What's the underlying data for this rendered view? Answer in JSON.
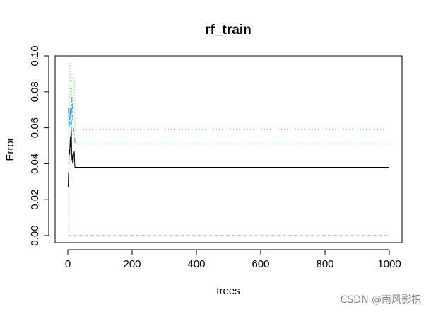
{
  "chart_data": {
    "type": "line",
    "title": "rf_train",
    "xlabel": "trees",
    "ylabel": "Error",
    "xlim": [
      0,
      1000
    ],
    "ylim": [
      0,
      0.1
    ],
    "x_ticks": [
      0,
      200,
      400,
      600,
      800,
      1000
    ],
    "x_tick_labels": [
      "0",
      "200",
      "400",
      "600",
      "800",
      "1000"
    ],
    "y_ticks": [
      0.0,
      0.02,
      0.04,
      0.06,
      0.08,
      0.1
    ],
    "y_tick_labels": [
      "0.00",
      "0.02",
      "0.04",
      "0.06",
      "0.08",
      "0.10"
    ],
    "grid": false,
    "legend": false,
    "series": [
      {
        "color": "#000000",
        "dash": "solid",
        "x": [
          1,
          2,
          3,
          4,
          5,
          6,
          7,
          8,
          9,
          10,
          11,
          12,
          13,
          14,
          15,
          16,
          17,
          18,
          19,
          20,
          21,
          22,
          23,
          1000
        ],
        "y": [
          0.027,
          0.035,
          0.033,
          0.048,
          0.045,
          0.046,
          0.052,
          0.055,
          0.049,
          0.061,
          0.058,
          0.046,
          0.042,
          0.045,
          0.04,
          0.043,
          0.041,
          0.046,
          0.045,
          0.047,
          0.042,
          0.038,
          0.038,
          0.038
        ]
      },
      {
        "color": "#DF536B",
        "dash": "4,4",
        "x": [
          1,
          1000
        ],
        "y": [
          0.0,
          0.0
        ]
      },
      {
        "color": "#61D04F",
        "dash": "1,3",
        "x": [
          1,
          2,
          3,
          4,
          5,
          6,
          7,
          8,
          9,
          10,
          11,
          12,
          13,
          14,
          15,
          16,
          17,
          18,
          19,
          20,
          21,
          22,
          23,
          1000
        ],
        "y": [
          0.0,
          0.0,
          0.059,
          0.06,
          0.074,
          0.089,
          0.096,
          0.089,
          0.088,
          0.07,
          0.07,
          0.081,
          0.088,
          0.088,
          0.088,
          0.088,
          0.07,
          0.088,
          0.088,
          0.088,
          0.088,
          0.07,
          0.059,
          0.059
        ]
      },
      {
        "color": "#2297E6",
        "dash": "8,3,2,3",
        "x": [
          1,
          2,
          3,
          4,
          5,
          6,
          7,
          8,
          9,
          10,
          11,
          12,
          13,
          14,
          15,
          16,
          17,
          18,
          19,
          20,
          21,
          22,
          23,
          1000
        ],
        "y": [
          0.071,
          0.07,
          0.06,
          0.071,
          0.065,
          0.061,
          0.063,
          0.071,
          0.069,
          0.059,
          0.06,
          0.073,
          0.077,
          0.071,
          0.066,
          0.063,
          0.061,
          0.059,
          0.058,
          0.056,
          0.055,
          0.052,
          0.051,
          0.051
        ]
      }
    ]
  },
  "watermark": "CSDN @南风影枳"
}
